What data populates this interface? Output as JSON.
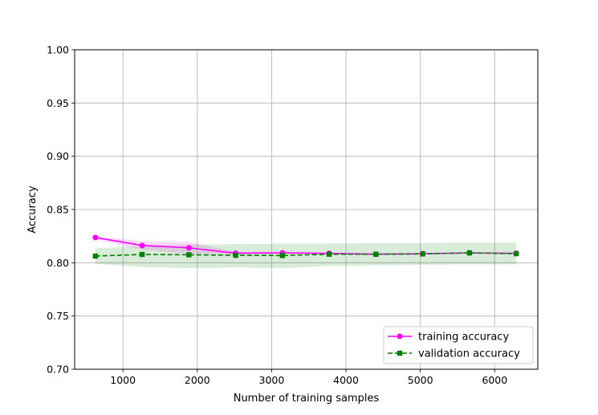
{
  "chart_data": {
    "type": "line",
    "title": "",
    "xlabel": "Number of training samples",
    "ylabel": "Accuracy",
    "xlim": [
      350,
      6580
    ],
    "ylim": [
      0.7,
      1.0
    ],
    "xticks": [
      1000,
      2000,
      3000,
      4000,
      5000,
      6000
    ],
    "xtick_labels": [
      "1000",
      "2000",
      "3000",
      "4000",
      "5000",
      "6000"
    ],
    "yticks": [
      0.7,
      0.75,
      0.8,
      0.85,
      0.9,
      0.95,
      1.0
    ],
    "ytick_labels": [
      "0.70",
      "0.75",
      "0.80",
      "0.85",
      "0.90",
      "0.95",
      "1.00"
    ],
    "grid": true,
    "legend_position": "lower-right",
    "x": [
      629,
      1258,
      1887,
      2516,
      3145,
      3774,
      4403,
      5032,
      5661,
      6290
    ],
    "series": [
      {
        "name": "training accuracy",
        "color": "#ff00ff",
        "marker": "circle",
        "linestyle": "solid",
        "values": [
          0.8237,
          0.8162,
          0.814,
          0.809,
          0.8093,
          0.8088,
          0.808,
          0.8085,
          0.8092,
          0.8088
        ],
        "band_lower": [
          0.8222,
          0.8122,
          0.8085,
          0.8078,
          0.8083,
          0.808,
          0.8072,
          0.8078,
          0.8087,
          0.8083
        ],
        "band_upper": [
          0.8252,
          0.8202,
          0.8195,
          0.8102,
          0.8103,
          0.8096,
          0.8088,
          0.8092,
          0.8097,
          0.8093
        ]
      },
      {
        "name": "validation accuracy",
        "color": "#008000",
        "marker": "square",
        "linestyle": "dashed",
        "values": [
          0.8063,
          0.8078,
          0.8075,
          0.807,
          0.8068,
          0.808,
          0.808,
          0.8083,
          0.8093,
          0.8085
        ],
        "band_lower": [
          0.799,
          0.796,
          0.795,
          0.7955,
          0.795,
          0.797,
          0.7975,
          0.798,
          0.7985,
          0.7985
        ],
        "band_upper": [
          0.8135,
          0.816,
          0.817,
          0.8175,
          0.818,
          0.818,
          0.8185,
          0.8185,
          0.819,
          0.819
        ]
      }
    ]
  }
}
